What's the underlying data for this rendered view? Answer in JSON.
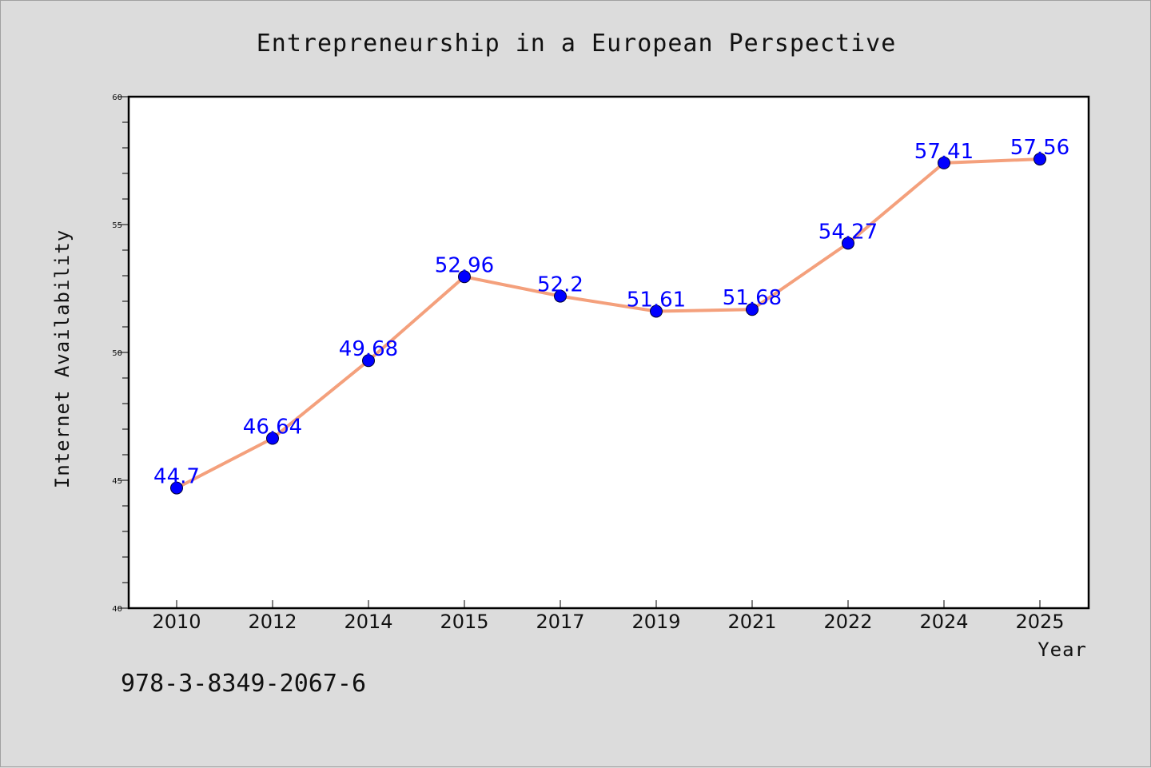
{
  "chart_data": {
    "type": "line",
    "title": "Entrepreneurship in a European Perspective",
    "xlabel": "Year",
    "ylabel": "Internet Availability",
    "categories": [
      "2010",
      "2012",
      "2014",
      "2015",
      "2017",
      "2019",
      "2021",
      "2022",
      "2024",
      "2025"
    ],
    "values": [
      44.7,
      46.64,
      49.68,
      52.96,
      52.2,
      51.61,
      51.68,
      54.27,
      57.41,
      57.56
    ],
    "data_labels": [
      "44.7",
      "46.64",
      "49.68",
      "52.96",
      "52.2",
      "51.61",
      "51.68",
      "54.27",
      "57.41",
      "57.56"
    ],
    "ylim": [
      40,
      60
    ],
    "yticks": [
      40,
      45,
      50,
      55,
      60
    ],
    "grid": false,
    "legend": "none",
    "line_color": "#f4a07c",
    "marker_color": "#0000ff",
    "label_color": "#0000ff"
  },
  "footer": {
    "isbn": "978-3-8349-2067-6"
  }
}
